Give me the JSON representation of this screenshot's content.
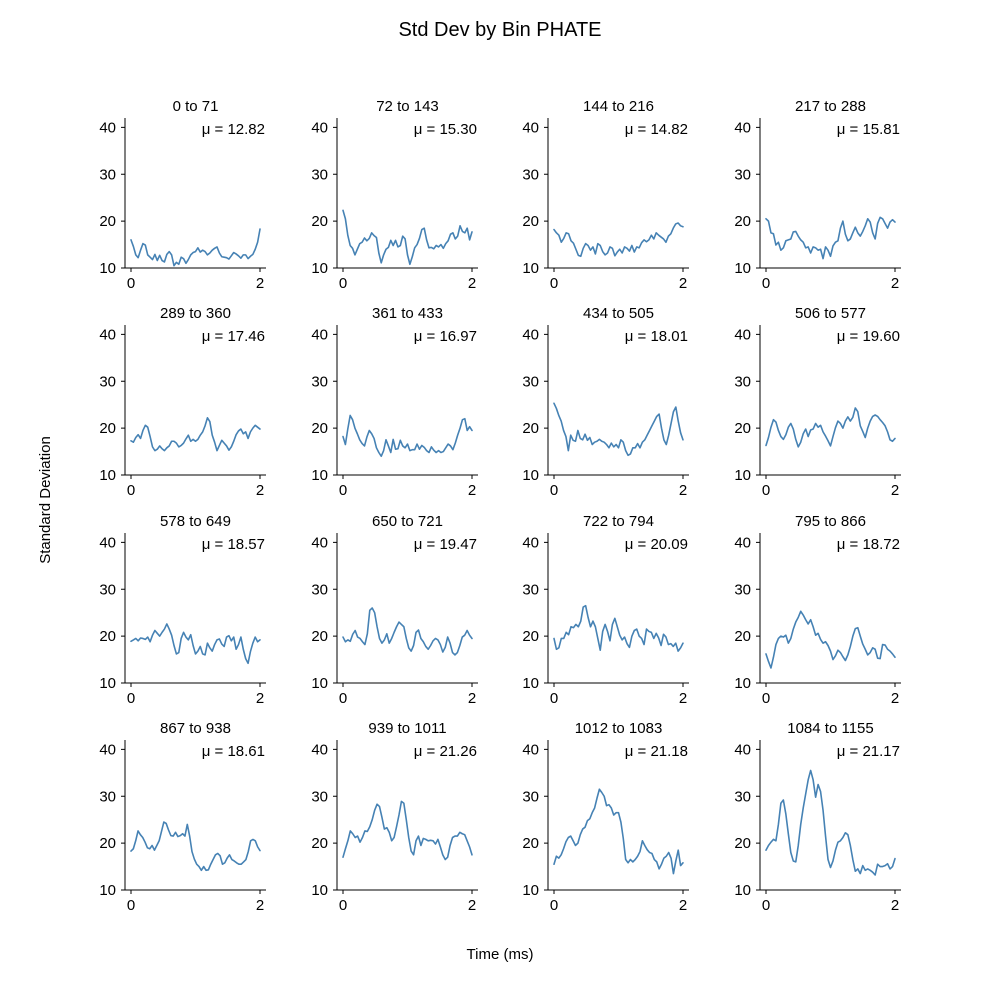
{
  "figure": {
    "title": "Std Dev by Bin PHATE",
    "xlabel": "Time (ms)",
    "ylabel": "Standard Deviation",
    "line_color": "#4682b4"
  },
  "chart_data": {
    "type": "line",
    "layout": "4x4 small multiples",
    "grid": false,
    "xlim": [
      0,
      2
    ],
    "ylim": [
      10,
      42
    ],
    "x_ticks": [
      0,
      2
    ],
    "y_ticks": [
      10,
      20,
      30,
      40
    ],
    "panels": [
      {
        "title": "0 to 71",
        "mean_label": "μ = 12.82",
        "values": [
          16,
          14.6,
          12.8,
          12.2,
          13.8,
          15.2,
          14.9,
          12.8,
          12.3,
          11.8,
          12.9,
          11.6,
          12.7,
          11.6,
          11.3,
          12.9,
          13.5,
          12.8,
          10.5,
          11.2,
          10.8,
          12.3,
          12,
          11,
          11.8,
          12.8,
          13.3,
          13.5,
          14.3,
          13.4,
          13.8,
          13.5,
          12.8,
          13.2,
          13.8,
          14.2,
          14.5,
          13.2,
          12.4,
          12.3,
          12.2,
          11.9,
          12.6,
          13.3,
          13,
          12.6,
          12.1,
          12.8,
          12.8,
          12,
          12.5,
          12.9,
          14,
          15.5,
          18.3
        ]
      },
      {
        "title": "72 to 143",
        "mean_label": "μ = 15.30",
        "values": [
          22.3,
          20.5,
          17,
          14.8,
          14.2,
          12.8,
          14,
          15.2,
          15.5,
          16.4,
          15.8,
          16.3,
          17.5,
          16.9,
          16.5,
          13.2,
          11.1,
          12.8,
          14,
          14.4,
          15.9,
          14.8,
          15.9,
          14.5,
          14.8,
          16.8,
          16.2,
          12.8,
          10.8,
          12.4,
          14.3,
          15,
          16.3,
          18.2,
          18.5,
          16,
          14.3,
          14.4,
          14.1,
          14.8,
          14.5,
          15,
          14.2,
          15.2,
          15.8,
          17.2,
          17.5,
          16.2,
          16.8,
          19,
          17.8,
          17.5,
          18.5,
          16,
          17.7
        ]
      },
      {
        "title": "144 to 216",
        "mean_label": "μ = 14.82",
        "values": [
          18.2,
          17.5,
          17,
          15.5,
          16.3,
          17.5,
          17.3,
          15.8,
          15.3,
          14,
          12.7,
          12.5,
          14.2,
          15.2,
          14.8,
          13.8,
          14.5,
          13,
          15.2,
          14.8,
          13.5,
          12.8,
          13.2,
          14.5,
          14.2,
          12.6,
          13.4,
          14,
          13.2,
          14.5,
          14.2,
          13.6,
          14.8,
          13.4,
          14.5,
          14.3,
          15.4,
          16,
          15.6,
          16,
          17,
          16.2,
          17.5,
          17,
          16.6,
          16.2,
          15.5,
          16.8,
          17.3,
          18.5,
          19.4,
          19.6,
          19,
          18.8
        ]
      },
      {
        "title": "217 to 288",
        "mean_label": "μ = 15.81",
        "values": [
          20.5,
          20,
          17.5,
          17.3,
          14.9,
          15.5,
          13.8,
          14.3,
          15.8,
          16,
          16.2,
          17.7,
          17.8,
          16.8,
          16,
          15.5,
          14.3,
          14.5,
          13.2,
          14.5,
          14.3,
          13.8,
          14,
          12,
          14.5,
          13.8,
          12.5,
          14.7,
          15.5,
          15.8,
          18.5,
          20,
          17.2,
          15.8,
          16.2,
          17.5,
          18.7,
          17.5,
          16.8,
          17.8,
          19,
          20.5,
          19.8,
          17.5,
          16.2,
          19.5,
          20.8,
          20.5,
          19.5,
          18.5,
          19.8,
          20.3,
          19.8
        ]
      },
      {
        "title": "289 to 360",
        "mean_label": "μ = 17.46",
        "values": [
          17.3,
          17,
          18,
          18.6,
          17.8,
          19.5,
          20.6,
          20.2,
          18.2,
          16,
          15.2,
          15.5,
          16.2,
          15.6,
          15.2,
          15.8,
          16.2,
          17.2,
          17.2,
          16.8,
          16,
          16.3,
          16.8,
          17.7,
          18.5,
          17.2,
          17.6,
          17.2,
          17.6,
          18.5,
          19.2,
          20.5,
          22.2,
          21.4,
          18.5,
          17,
          15.2,
          16.3,
          17.4,
          16.8,
          16.2,
          15.3,
          16,
          17.2,
          18.6,
          19.4,
          19.8,
          18.8,
          19.2,
          17.8,
          19.2,
          20,
          20.6,
          20.2,
          19.8
        ]
      },
      {
        "title": "361 to 433",
        "mean_label": "μ = 16.97",
        "values": [
          18.2,
          16.5,
          19.8,
          22.7,
          21.8,
          20,
          18.8,
          17.5,
          16.7,
          16.2,
          18.1,
          19.5,
          18.8,
          17.8,
          15.8,
          14.8,
          14,
          15.2,
          17.5,
          16.2,
          14.8,
          17.6,
          15.5,
          15.6,
          17.4,
          16.2,
          15.8,
          16.6,
          15.2,
          15.4,
          15.4,
          16.6,
          15.5,
          16.3,
          15.9,
          15.2,
          14.8,
          16,
          15.3,
          14.8,
          15.2,
          14.8,
          15,
          15.8,
          16.6,
          16.2,
          15.4,
          16.8,
          18.5,
          20,
          21.8,
          22,
          19.5,
          20.3,
          19.5
        ]
      },
      {
        "title": "434 to 505",
        "mean_label": "μ = 18.01",
        "values": [
          25.3,
          24.2,
          22.7,
          21.5,
          19.5,
          18.2,
          15.2,
          18.5,
          17.4,
          17.2,
          19.5,
          17.8,
          17.5,
          18.7,
          17.4,
          18,
          16.5,
          17,
          17.2,
          17.6,
          17.2,
          17,
          16.5,
          15.8,
          16.8,
          16,
          16.5,
          15.8,
          17.5,
          17,
          15.2,
          14.2,
          14.5,
          15.8,
          15.8,
          16.7,
          15.8,
          17,
          17.5,
          18.5,
          19.5,
          20.5,
          21.5,
          22.5,
          23,
          20,
          17.5,
          16.5,
          18.5,
          21,
          23.5,
          24.5,
          21.5,
          19,
          17.5
        ]
      },
      {
        "title": "506 to 577",
        "mean_label": "μ = 19.60",
        "values": [
          16.3,
          18,
          20.2,
          21.8,
          21.3,
          19.5,
          18.2,
          17.6,
          18.6,
          20.2,
          21,
          19.8,
          17.6,
          16,
          17,
          18.8,
          19.8,
          18.2,
          19.6,
          19.8,
          21,
          20.2,
          20.6,
          19.2,
          18.3,
          17.3,
          16.2,
          18.2,
          20.1,
          21.5,
          21,
          20,
          21.5,
          22.4,
          21.5,
          22.3,
          24.3,
          23.5,
          20.5,
          19.3,
          18,
          20,
          21.5,
          22.5,
          22.8,
          22.5,
          21.8,
          21.2,
          20.5,
          19.2,
          17.5,
          17.2,
          17.8
        ]
      },
      {
        "title": "578 to 649",
        "mean_label": "μ = 18.57",
        "values": [
          18.9,
          19.2,
          19.5,
          19,
          19.6,
          19.5,
          19.3,
          19.8,
          18.8,
          20.2,
          21.2,
          20.6,
          20,
          20.8,
          21.5,
          22.6,
          21.5,
          20.2,
          18,
          16.2,
          16.5,
          19.5,
          20.8,
          19.8,
          19.2,
          20.3,
          18,
          16.2,
          16.8,
          17.8,
          16.2,
          16,
          18.5,
          17.5,
          16.8,
          18.2,
          19.2,
          19.4,
          18.3,
          17.8,
          19.8,
          20.1,
          19,
          19.8,
          17.2,
          18.2,
          19.8,
          17.2,
          15.2,
          14.2,
          16.7,
          18.5,
          19.8,
          18.8,
          19.2
        ]
      },
      {
        "title": "650 to 721",
        "mean_label": "μ = 19.47",
        "values": [
          19.8,
          18.8,
          19.2,
          18.9,
          20.4,
          21.2,
          19.8,
          19.5,
          18.8,
          18.2,
          20.5,
          25.5,
          26,
          25,
          22,
          19.5,
          18.5,
          19.2,
          20.5,
          18.5,
          19.5,
          20.8,
          22,
          23,
          22.5,
          22,
          19.5,
          17.5,
          16.8,
          18,
          20.8,
          21.3,
          19.5,
          18.8,
          17.8,
          17.2,
          18,
          19,
          19.5,
          19.2,
          18.2,
          16.6,
          17.6,
          19.8,
          18.5,
          16.5,
          16,
          16.5,
          18,
          19.8,
          20.2,
          21.2,
          20.2,
          19.5
        ]
      },
      {
        "title": "722 to 794",
        "mean_label": "μ = 20.09",
        "values": [
          19.5,
          17.2,
          17.5,
          19.5,
          19.5,
          20.8,
          20.3,
          22,
          21.8,
          22.5,
          22,
          23.2,
          26.2,
          26.5,
          24,
          22,
          23.2,
          22,
          19.5,
          17,
          21,
          22.5,
          21,
          19,
          22.5,
          23.8,
          22,
          20.2,
          19.2,
          19.8,
          18.4,
          17.6,
          20,
          21.2,
          21.5,
          20,
          19.5,
          18.2,
          21.5,
          21,
          20.8,
          19.5,
          20.6,
          19.6,
          18,
          20.4,
          19.8,
          18.2,
          18.4,
          17.8,
          18.5,
          16.8,
          17.5,
          18.5
        ]
      },
      {
        "title": "795 to 866",
        "mean_label": "μ = 18.72",
        "values": [
          16.2,
          14.6,
          13.2,
          15.5,
          18.2,
          19.5,
          20,
          19.8,
          20.2,
          18.5,
          19.5,
          21.5,
          23,
          24,
          25.3,
          24.5,
          23.5,
          22.6,
          23.5,
          22,
          20.2,
          20.6,
          19.3,
          18.5,
          18.8,
          18,
          16.8,
          15,
          15.8,
          17,
          16.5,
          15.6,
          14.8,
          16,
          17.8,
          20,
          21.6,
          21.8,
          20,
          18.3,
          17.2,
          16,
          16.5,
          17.5,
          17.2,
          15.3,
          15.2,
          18.2,
          18.1,
          17.2,
          16.8,
          16.2,
          15.5
        ]
      },
      {
        "title": "867 to 938",
        "mean_label": "μ = 18.61",
        "values": [
          18.3,
          18.8,
          20.5,
          22.6,
          21.8,
          21.2,
          20.2,
          19,
          18.8,
          19.5,
          18.5,
          19.5,
          20.5,
          22.5,
          24.5,
          24.2,
          22.8,
          21.6,
          21.5,
          22.3,
          21.4,
          21.6,
          22,
          21.5,
          24,
          21.5,
          18.2,
          16.6,
          15.5,
          15,
          14.2,
          15,
          14.2,
          14.3,
          15.5,
          16.5,
          17.5,
          17.8,
          17.3,
          15.5,
          15.8,
          16.8,
          17.5,
          16.5,
          16.2,
          15.8,
          15.5,
          15.5,
          16,
          16.5,
          18.2,
          20.5,
          20.8,
          20.5,
          19.2,
          18.4
        ]
      },
      {
        "title": "939 to 1011",
        "mean_label": "μ = 21.26",
        "values": [
          17,
          18.8,
          20.5,
          22.6,
          22,
          21.2,
          21.5,
          20.2,
          21.2,
          22.6,
          22.5,
          23.5,
          25,
          27,
          28.3,
          27.8,
          25.5,
          23,
          23.3,
          22.3,
          20.5,
          21.2,
          23.5,
          26,
          28.9,
          28.5,
          25,
          21.2,
          18.3,
          17.5,
          20.5,
          21.5,
          19.5,
          21,
          20.8,
          20.5,
          20.6,
          20.5,
          19.8,
          20.8,
          19.2,
          17.5,
          16.5,
          17,
          19.5,
          21.2,
          21.5,
          21.5,
          22.3,
          22,
          21.8,
          20.5,
          19.2,
          17.5
        ]
      },
      {
        "title": "1012 to 1083",
        "mean_label": "μ = 21.18",
        "values": [
          15.5,
          17.2,
          16.8,
          17.5,
          18.8,
          20.3,
          21.2,
          21.5,
          20.5,
          19.5,
          20,
          21.8,
          23,
          23.4,
          24.8,
          25.2,
          26.5,
          27.5,
          29.6,
          31.5,
          30.8,
          30,
          28,
          28.2,
          27.5,
          26,
          26.5,
          26.5,
          24.5,
          21,
          16.5,
          15.8,
          16.5,
          16,
          16.5,
          17.2,
          18.2,
          20.5,
          19.5,
          18.6,
          18,
          17.8,
          16.5,
          16,
          14.5,
          15.5,
          16.8,
          17.2,
          18,
          16.8,
          13.5,
          16.2,
          18.5,
          15.2,
          15.8
        ]
      },
      {
        "title": "1084 to 1155",
        "mean_label": "μ = 21.17",
        "values": [
          18.5,
          19.5,
          20.2,
          20.8,
          20.5,
          24,
          28.5,
          29.2,
          26.2,
          22,
          18,
          16.2,
          16,
          19.5,
          24,
          27.5,
          30.5,
          33.5,
          35.5,
          33.5,
          29.8,
          32.5,
          31,
          27,
          21.5,
          16.5,
          14.8,
          16.2,
          18.5,
          20.2,
          20.5,
          21.2,
          22.2,
          21.8,
          19.5,
          16.5,
          14,
          14.5,
          13.5,
          15.2,
          14.2,
          14.5,
          14.2,
          13.8,
          13.2,
          15.5,
          15,
          15,
          15.2,
          15.6,
          14.5,
          15,
          16.7
        ]
      }
    ]
  }
}
